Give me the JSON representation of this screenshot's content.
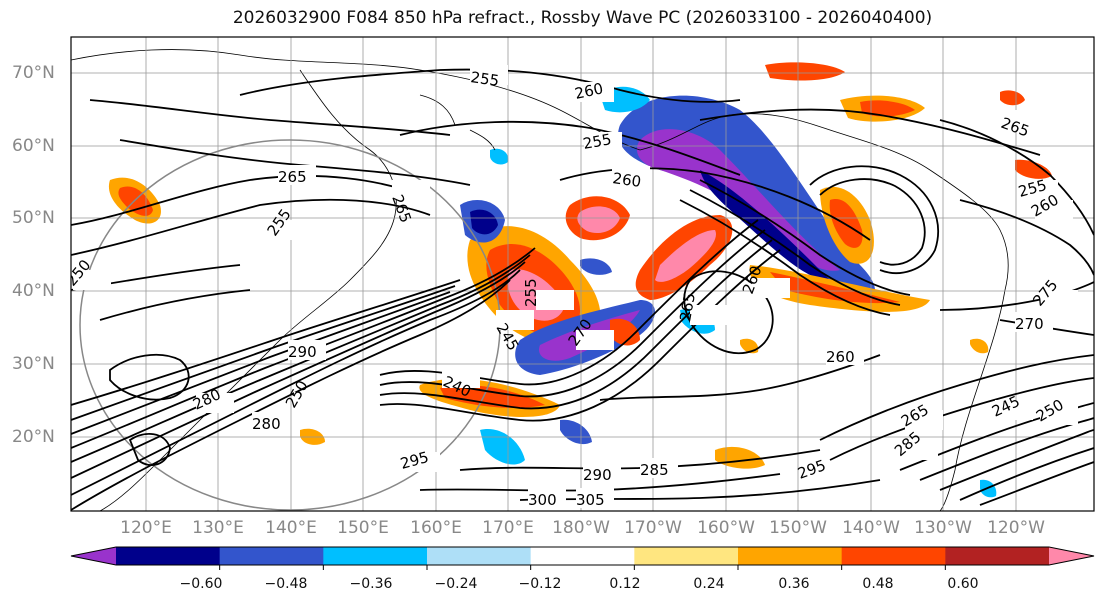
{
  "title": "2026032900 F084 850 hPa refract., Rossby Wave PC (2026033100 - 2026040400)",
  "latitude_labels": [
    "70°N",
    "60°N",
    "50°N",
    "40°N",
    "30°N",
    "20°N"
  ],
  "longitude_labels": [
    "120°E",
    "130°E",
    "140°E",
    "150°E",
    "160°E",
    "170°E",
    "180°W",
    "170°W",
    "160°W",
    "150°W",
    "140°W",
    "130°W",
    "120°W"
  ],
  "contour_labels": [
    "255",
    "260",
    "255",
    "265",
    "260",
    "265",
    "255",
    "265",
    "255",
    "260",
    "250",
    "290",
    "285",
    "280",
    "240",
    "255",
    "245",
    "265",
    "260",
    "250",
    "245",
    "250",
    "275",
    "270",
    "290",
    "285",
    "295",
    "305",
    "300",
    "295",
    "280",
    "260",
    "270",
    "265"
  ],
  "colorbar": {
    "ticks": [
      "−0.60",
      "−0.48",
      "−0.36",
      "−0.24",
      "−0.12",
      "0.12",
      "0.24",
      "0.36",
      "0.48",
      "0.60"
    ],
    "colors": [
      "#9933cc",
      "#00008b",
      "#3355cc",
      "#00bfff",
      "#aedff7",
      "#ffffff",
      "#ffe680",
      "#ffa500",
      "#ff4500",
      "#b22222",
      "#ff88aa"
    ]
  }
}
